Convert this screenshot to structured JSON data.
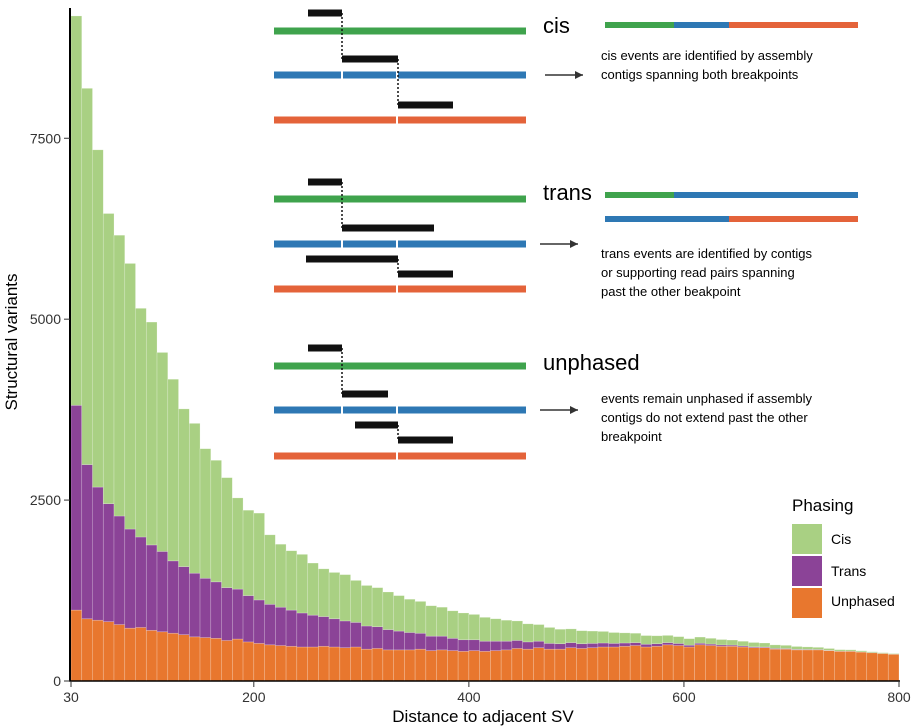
{
  "chart_data": {
    "type": "bar",
    "stacked": true,
    "x_bins": [
      30,
      40,
      50,
      60,
      70,
      80,
      90,
      100,
      110,
      120,
      130,
      140,
      150,
      160,
      170,
      180,
      190,
      200,
      210,
      220,
      230,
      240,
      250,
      260,
      270,
      280,
      290,
      300,
      310,
      320,
      330,
      340,
      350,
      360,
      370,
      380,
      390,
      400,
      410,
      420,
      430,
      440,
      450,
      460,
      470,
      480,
      490,
      500,
      510,
      520,
      530,
      540,
      550,
      560,
      570,
      580,
      590,
      600,
      610,
      620,
      630,
      640,
      650,
      660,
      670,
      680,
      690,
      700,
      710,
      720,
      730,
      740,
      750,
      760,
      770,
      780,
      790
    ],
    "series": [
      {
        "name": "Unphased",
        "color": "#E8772E",
        "values": [
          980,
          860,
          840,
          820,
          780,
          730,
          740,
          700,
          680,
          660,
          640,
          610,
          600,
          590,
          560,
          580,
          540,
          520,
          500,
          490,
          480,
          470,
          470,
          480,
          470,
          460,
          470,
          440,
          450,
          430,
          430,
          430,
          440,
          420,
          430,
          420,
          410,
          420,
          410,
          420,
          430,
          450,
          440,
          460,
          440,
          440,
          460,
          450,
          460,
          470,
          470,
          480,
          490,
          470,
          480,
          500,
          490,
          470,
          500,
          490,
          480,
          480,
          470,
          460,
          460,
          440,
          440,
          430,
          430,
          430,
          420,
          410,
          410,
          400,
          390,
          380,
          370
        ]
      },
      {
        "name": "Trans",
        "color": "#8B4397",
        "values": [
          2830,
          2130,
          1840,
          1630,
          1500,
          1370,
          1250,
          1180,
          1110,
          1000,
          940,
          880,
          820,
          780,
          730,
          690,
          640,
          600,
          560,
          530,
          500,
          470,
          440,
          410,
          390,
          370,
          340,
          320,
          300,
          280,
          260,
          240,
          220,
          200,
          190,
          170,
          160,
          150,
          140,
          130,
          120,
          110,
          100,
          90,
          80,
          75,
          70,
          65,
          60,
          55,
          50,
          45,
          40,
          38,
          35,
          30,
          28,
          25,
          22,
          20,
          18,
          16,
          14,
          12,
          10,
          9,
          8,
          7,
          6,
          5,
          4,
          3,
          3,
          2,
          2,
          1,
          1
        ]
      },
      {
        "name": "Cis",
        "color": "#A9D083",
        "values": [
          5380,
          5200,
          4660,
          4010,
          3880,
          3670,
          3160,
          3080,
          2750,
          2510,
          2180,
          2070,
          1790,
          1680,
          1520,
          1260,
          1180,
          1200,
          960,
          870,
          820,
          810,
          720,
          660,
          640,
          640,
          580,
          560,
          540,
          520,
          490,
          460,
          440,
          420,
          400,
          380,
          370,
          350,
          330,
          310,
          290,
          270,
          250,
          230,
          220,
          200,
          190,
          180,
          170,
          160,
          150,
          140,
          130,
          120,
          110,
          100,
          95,
          90,
          85,
          80,
          75,
          70,
          65,
          60,
          55,
          50,
          45,
          40,
          35,
          30,
          25,
          20,
          18,
          15,
          12,
          10,
          8
        ]
      }
    ],
    "xlabel": "Distance to adjacent SV",
    "ylabel": "Structural variants",
    "xlim": [
      30,
      800
    ],
    "ylim": [
      0,
      9300
    ],
    "xticks": [
      30,
      200,
      400,
      600,
      800
    ],
    "yticks": [
      0,
      2500,
      5000,
      7500
    ],
    "grid": false,
    "legend": {
      "title": "Phasing",
      "position": "right",
      "entries": [
        {
          "label": "Cis",
          "color": "#A9D083"
        },
        {
          "label": "Trans",
          "color": "#8B4397"
        },
        {
          "label": "Unphased",
          "color": "#E8772E"
        }
      ]
    },
    "annotations": [
      {
        "heading": "cis",
        "text": [
          "cis events are identified by assembly",
          "contigs spanning both breakpoints"
        ]
      },
      {
        "heading": "trans",
        "text": [
          "trans events are identified by contigs",
          "or supporting read pairs spanning",
          "past the other beakpoint"
        ]
      },
      {
        "heading": "unphased",
        "text": [
          "events remain unphased if assembly",
          "contigs do not extend past the other",
          "breakpoint"
        ]
      }
    ],
    "schematic_colors": {
      "green": "#3FA34D",
      "blue": "#2E78B4",
      "red": "#E4633A",
      "contig": "#111111"
    }
  }
}
